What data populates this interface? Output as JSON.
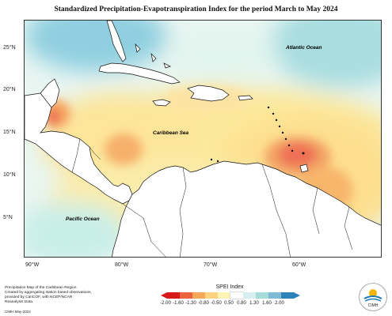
{
  "title": "Standardized Precipitation-Evapotranspiration Index for the period March to May 2024",
  "map": {
    "labels": {
      "atlantic": "Atlantic Ocean",
      "caribbean": "Caribbean Sea",
      "pacific": "Pacific Ocean"
    },
    "lat_labels": [
      "25°N",
      "20°N",
      "15°N",
      "10°N",
      "5°N"
    ],
    "lon_labels": [
      "90°W",
      "80°W",
      "70°W",
      "60°W"
    ]
  },
  "legend": {
    "title": "SPEI Index",
    "ticks": [
      "-2.00",
      "-1.60",
      "-1.30",
      "-0.80",
      "-0.50",
      "0.50",
      "0.80",
      "1.30",
      "1.60",
      "2.00"
    ],
    "colors": [
      "#d7191c",
      "#ea633e",
      "#f7a75a",
      "#fcd281",
      "#fff4b4",
      "#ffffff",
      "#d6eff0",
      "#a6dbda",
      "#7fbad5",
      "#2b83ba"
    ]
  },
  "footnote": {
    "lines": [
      "Precipitation Map of the Caribbean Region.",
      "Created by aggregating station based observations,",
      "provided by CariCOF, with NCEP/NCAR Reanalysis Data."
    ],
    "date": "CIMH May-2024"
  },
  "logo": {
    "icon": "cimh-logo-icon",
    "text": "CIMH"
  }
}
